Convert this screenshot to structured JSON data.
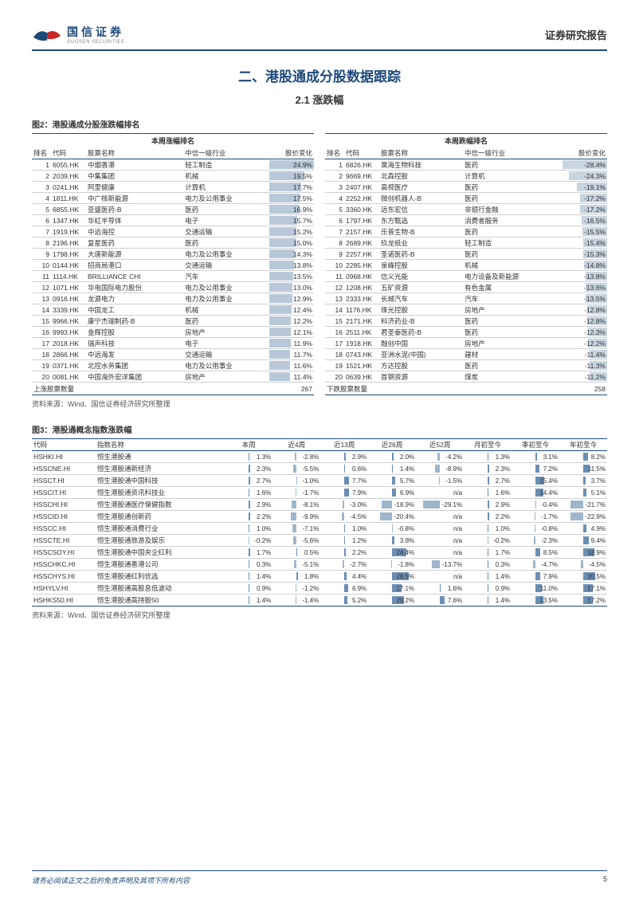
{
  "header": {
    "logo_cn": "国信证券",
    "logo_en": "GUOSEN SECURITIES",
    "right": "证券研究报告"
  },
  "section_title": "二、港股通成分股数据跟踪",
  "sub_title": "2.1 涨跌幅",
  "fig2": {
    "label": "图2：港股通成分股涨跌幅排名",
    "lhdr": "本周涨幅排名",
    "rhdr": "本周跌幅排名",
    "cols": {
      "rank": "排名",
      "code": "代码",
      "name": "股票名称",
      "industry": "中信一级行业",
      "chg": "股价变化"
    },
    "gainers": [
      {
        "rank": 1,
        "code": "6055.HK",
        "name": "中烟香港",
        "industry": "轻工制造",
        "chg": "24.9%",
        "w": 100
      },
      {
        "rank": 2,
        "code": "2039.HK",
        "name": "中集集团",
        "industry": "机械",
        "chg": "19.5%",
        "w": 78
      },
      {
        "rank": 3,
        "code": "0241.HK",
        "name": "阿里健康",
        "industry": "计算机",
        "chg": "17.7%",
        "w": 71
      },
      {
        "rank": 4,
        "code": "1811.HK",
        "name": "中广核新能源",
        "industry": "电力及公用事业",
        "chg": "17.5%",
        "w": 70
      },
      {
        "rank": 5,
        "code": "6855.HK",
        "name": "亚盛医药-B",
        "industry": "医药",
        "chg": "16.9%",
        "w": 68
      },
      {
        "rank": 6,
        "code": "1347.HK",
        "name": "华虹半导体",
        "industry": "电子",
        "chg": "15.7%",
        "w": 63
      },
      {
        "rank": 7,
        "code": "1919.HK",
        "name": "中远海控",
        "industry": "交通运输",
        "chg": "15.2%",
        "w": 61
      },
      {
        "rank": 8,
        "code": "2196.HK",
        "name": "复星医药",
        "industry": "医药",
        "chg": "15.0%",
        "w": 60
      },
      {
        "rank": 9,
        "code": "1798.HK",
        "name": "大唐新能源",
        "industry": "电力及公用事业",
        "chg": "14.3%",
        "w": 57
      },
      {
        "rank": 10,
        "code": "0144.HK",
        "name": "招商局港口",
        "industry": "交通运输",
        "chg": "13.8%",
        "w": 55
      },
      {
        "rank": 11,
        "code": "1114.HK",
        "name": "BRILLIANCE CHI",
        "industry": "汽车",
        "chg": "13.5%",
        "w": 54
      },
      {
        "rank": 12,
        "code": "1071.HK",
        "name": "华电国际电力股份",
        "industry": "电力及公用事业",
        "chg": "13.0%",
        "w": 52
      },
      {
        "rank": 13,
        "code": "0916.HK",
        "name": "龙源电力",
        "industry": "电力及公用事业",
        "chg": "12.9%",
        "w": 52
      },
      {
        "rank": 14,
        "code": "3339.HK",
        "name": "中国龙工",
        "industry": "机械",
        "chg": "12.4%",
        "w": 50
      },
      {
        "rank": 15,
        "code": "9966.HK",
        "name": "康宁杰瑞制药-B",
        "industry": "医药",
        "chg": "12.2%",
        "w": 49
      },
      {
        "rank": 16,
        "code": "9993.HK",
        "name": "金辉控股",
        "industry": "房地产",
        "chg": "12.1%",
        "w": 49
      },
      {
        "rank": 17,
        "code": "2018.HK",
        "name": "瑞声科技",
        "industry": "电子",
        "chg": "11.9%",
        "w": 48
      },
      {
        "rank": 18,
        "code": "2866.HK",
        "name": "中远海发",
        "industry": "交通运输",
        "chg": "11.7%",
        "w": 47
      },
      {
        "rank": 19,
        "code": "0371.HK",
        "name": "北控水务集团",
        "industry": "电力及公用事业",
        "chg": "11.6%",
        "w": 47
      },
      {
        "rank": 20,
        "code": "0081.HK",
        "name": "中国海外宏洋集团",
        "industry": "房地产",
        "chg": "11.4%",
        "w": 46
      }
    ],
    "losers": [
      {
        "rank": 1,
        "code": "6826.HK",
        "name": "昊海生物科技",
        "industry": "医药",
        "chg": "-28.4%",
        "w": 100
      },
      {
        "rank": 2,
        "code": "9669.HK",
        "name": "北森控股",
        "industry": "计算机",
        "chg": "-24.3%",
        "w": 86
      },
      {
        "rank": 3,
        "code": "2407.HK",
        "name": "高视医疗",
        "industry": "医药",
        "chg": "-19.1%",
        "w": 67
      },
      {
        "rank": 4,
        "code": "2252.HK",
        "name": "微创机器人-B",
        "industry": "医药",
        "chg": "-17.2%",
        "w": 61
      },
      {
        "rank": 5,
        "code": "3360.HK",
        "name": "远东宏信",
        "industry": "非银行金融",
        "chg": "-17.2%",
        "w": 61
      },
      {
        "rank": 6,
        "code": "1797.HK",
        "name": "东方甄选",
        "industry": "消费者服务",
        "chg": "-16.5%",
        "w": 58
      },
      {
        "rank": 7,
        "code": "2157.HK",
        "name": "乐普生物-B",
        "industry": "医药",
        "chg": "-15.5%",
        "w": 55
      },
      {
        "rank": 8,
        "code": "2689.HK",
        "name": "玖龙纸业",
        "industry": "轻工制造",
        "chg": "-15.4%",
        "w": 54
      },
      {
        "rank": 9,
        "code": "2257.HK",
        "name": "圣诺医药-B",
        "industry": "医药",
        "chg": "-15.3%",
        "w": 54
      },
      {
        "rank": 10,
        "code": "2285.HK",
        "name": "泉峰控股",
        "industry": "机械",
        "chg": "-14.8%",
        "w": 52
      },
      {
        "rank": 11,
        "code": "0968.HK",
        "name": "信义光能",
        "industry": "电力设备及新能源",
        "chg": "-13.8%",
        "w": 49
      },
      {
        "rank": 12,
        "code": "1208.HK",
        "name": "五矿资源",
        "industry": "有色金属",
        "chg": "-13.6%",
        "w": 48
      },
      {
        "rank": 13,
        "code": "2333.HK",
        "name": "长城汽车",
        "industry": "汽车",
        "chg": "-13.5%",
        "w": 48
      },
      {
        "rank": 14,
        "code": "1176.HK",
        "name": "珠光控股",
        "industry": "房地产",
        "chg": "-12.8%",
        "w": 45
      },
      {
        "rank": 15,
        "code": "2171.HK",
        "name": "科济药业-B",
        "industry": "医药",
        "chg": "-12.8%",
        "w": 45
      },
      {
        "rank": 16,
        "code": "2511.HK",
        "name": "君圣泰医药-B",
        "industry": "医药",
        "chg": "-12.3%",
        "w": 43
      },
      {
        "rank": 17,
        "code": "1918.HK",
        "name": "融创中国",
        "industry": "房地产",
        "chg": "-12.2%",
        "w": 43
      },
      {
        "rank": 18,
        "code": "0743.HK",
        "name": "亚洲水泥(中国)",
        "industry": "建材",
        "chg": "-11.4%",
        "w": 40
      },
      {
        "rank": 19,
        "code": "1521.HK",
        "name": "方达控股",
        "industry": "医药",
        "chg": "-11.3%",
        "w": 40
      },
      {
        "rank": 20,
        "code": "0639.HK",
        "name": "首钢资源",
        "industry": "煤炭",
        "chg": "-11.2%",
        "w": 39
      }
    ],
    "sum_l_label": "上涨股票数量",
    "sum_l_val": "267",
    "sum_r_label": "下跌股票数量",
    "sum_r_val": "258",
    "source": "资料来源：Wind、国信证券经济研究所整理"
  },
  "fig3": {
    "label": "图3：港股通概念指数涨跌幅",
    "cols": [
      "代码",
      "指数名称",
      "本周",
      "近4周",
      "近13周",
      "近26周",
      "近52周",
      "月初至今",
      "季初至今",
      "年初至今"
    ],
    "rows": [
      {
        "code": "HSHKI.HI",
        "name": "恒生港股通",
        "v": [
          "1.3%",
          "-2.8%",
          "2.9%",
          "2.0%",
          "-4.2%",
          "1.3%",
          "3.1%",
          "8.2%"
        ]
      },
      {
        "code": "HSSCNE.HI",
        "name": "恒生港股通新经济",
        "v": [
          "2.3%",
          "-5.5%",
          "0.6%",
          "1.4%",
          "-8.9%",
          "2.3%",
          "7.2%",
          "11.5%"
        ]
      },
      {
        "code": "HSSCT.HI",
        "name": "恒生港股通中国科技",
        "v": [
          "2.7%",
          "-1.0%",
          "7.7%",
          "5.7%",
          "-1.5%",
          "2.7%",
          "15.4%",
          "3.7%"
        ]
      },
      {
        "code": "HSSCIT.HI",
        "name": "恒生港股通资讯科技业",
        "v": [
          "1.6%",
          "-1.7%",
          "7.9%",
          "6.9%",
          "n/a",
          "1.6%",
          "14.4%",
          "5.1%"
        ]
      },
      {
        "code": "HSSCHI.HI",
        "name": "恒生港股通医疗保健指数",
        "v": [
          "2.9%",
          "-8.1%",
          "-3.0%",
          "-18.9%",
          "-29.1%",
          "2.9%",
          "-0.4%",
          "-21.7%"
        ]
      },
      {
        "code": "HSSCID.HI",
        "name": "恒生港股通创新药",
        "v": [
          "2.2%",
          "-9.9%",
          "-4.5%",
          "-20.4%",
          "n/a",
          "2.2%",
          "-1.7%",
          "-22.9%"
        ]
      },
      {
        "code": "HSSCC.HI",
        "name": "恒生港股通消费行业",
        "v": [
          "1.0%",
          "-7.1%",
          "1.0%",
          "-0.8%",
          "n/a",
          "1.0%",
          "-0.8%",
          "4.9%"
        ]
      },
      {
        "code": "HSSCTE.HI",
        "name": "恒生港股通旅游及娱乐",
        "v": [
          "-0.2%",
          "-5.6%",
          "1.2%",
          "3.8%",
          "n/a",
          "-0.2%",
          "-2.3%",
          "9.4%"
        ]
      },
      {
        "code": "HSSCSOY.HI",
        "name": "恒生港股通中国央企红利",
        "v": [
          "1.7%",
          "0.5%",
          "2.2%",
          "24.4%",
          "n/a",
          "1.7%",
          "8.5%",
          "18.9%"
        ]
      },
      {
        "code": "HSSCHKC.HI",
        "name": "恒生港股通香港公司",
        "v": [
          "0.3%",
          "-5.1%",
          "-2.7%",
          "-1.8%",
          "-13.7%",
          "0.3%",
          "-4.7%",
          "-4.5%"
        ]
      },
      {
        "code": "HSSCHYS.HI",
        "name": "恒生港股通红利优选",
        "v": [
          "1.4%",
          "1.8%",
          "4.4%",
          "28.5%",
          "n/a",
          "1.4%",
          "7.9%",
          "20.5%"
        ]
      },
      {
        "code": "HSHYLV.HI",
        "name": "恒生港股通高股息低波动",
        "v": [
          "0.9%",
          "-1.2%",
          "6.9%",
          "17.1%",
          "1.6%",
          "0.9%",
          "11.0%",
          "17.1%"
        ]
      },
      {
        "code": "HSHKS50.HI",
        "name": "恒生港股通高持股50",
        "v": [
          "1.4%",
          "-1.4%",
          "5.2%",
          "20.2%",
          "7.6%",
          "1.4%",
          "13.5%",
          "17.2%"
        ]
      }
    ],
    "source": "资料来源：Wind、国信证券经济研究所整理"
  },
  "footer": {
    "disclaimer": "请务必阅读正文之后的免责声明及其项下所有内容",
    "page": "5"
  }
}
